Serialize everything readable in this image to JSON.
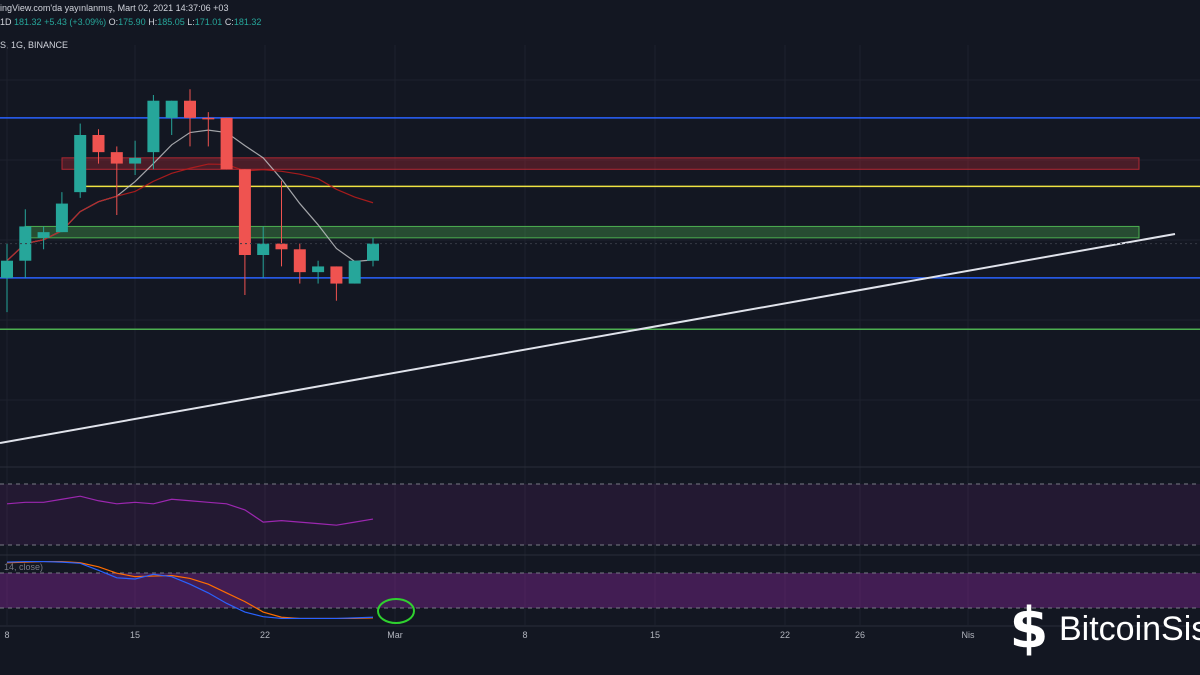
{
  "header": {
    "published": "ingView.com'da yayınlanmış, Mart 02, 2021 14:37:06 +03",
    "timeframe": "1D",
    "last_price": "181.32",
    "change": "+5.43 (+3.09%)",
    "o_label": "O:",
    "o_value": "175.90",
    "h_label": "H:",
    "h_value": "185.05",
    "l_label": "L:",
    "l_value": "171.01",
    "c_label": "C:",
    "c_value": "181.32",
    "symbol_line": "S, 1G, BINANCE",
    "stoch_label": "14, close)"
  },
  "watermark": {
    "brand": "BitcoinSis",
    "icon": "bitcoin-s-logo-icon"
  },
  "colors": {
    "background": "#131722",
    "up": "#26a69a",
    "down": "#ef5350",
    "blue_line": "#2962ff",
    "yellow_line": "#f0e442",
    "green_zone": "#4caf50",
    "red_zone": "#b22833",
    "rsi": "#9c27b0",
    "stoch_k": "#2962ff",
    "stoch_d": "#ff6d00",
    "trendline": "#e0e3eb"
  },
  "chart_data": {
    "type": "candlestick",
    "price_pane": {
      "ylim": [
        150,
        220
      ],
      "candles": [
        {
          "o": 181,
          "h": 187,
          "l": 175,
          "c": 184,
          "dir": "up"
        },
        {
          "o": 184,
          "h": 193,
          "l": 181,
          "c": 190,
          "dir": "up"
        },
        {
          "o": 188,
          "h": 190,
          "l": 186,
          "c": 189,
          "dir": "up"
        },
        {
          "o": 189,
          "h": 196,
          "l": 189,
          "c": 194,
          "dir": "up"
        },
        {
          "o": 196,
          "h": 208,
          "l": 195,
          "c": 206,
          "dir": "up"
        },
        {
          "o": 206,
          "h": 207,
          "l": 201,
          "c": 203,
          "dir": "down"
        },
        {
          "o": 203,
          "h": 204,
          "l": 192,
          "c": 201,
          "dir": "down"
        },
        {
          "o": 201,
          "h": 205,
          "l": 199,
          "c": 202,
          "dir": "up"
        },
        {
          "o": 203,
          "h": 213,
          "l": 200,
          "c": 212,
          "dir": "up"
        },
        {
          "o": 209,
          "h": 212,
          "l": 206,
          "c": 212,
          "dir": "up"
        },
        {
          "o": 212,
          "h": 214,
          "l": 204,
          "c": 209,
          "dir": "down"
        },
        {
          "o": 209,
          "h": 210,
          "l": 204,
          "c": 209,
          "dir": "down"
        },
        {
          "o": 209,
          "h": 209,
          "l": 200,
          "c": 200,
          "dir": "down"
        },
        {
          "o": 200,
          "h": 200,
          "l": 178,
          "c": 185,
          "dir": "down"
        },
        {
          "o": 185,
          "h": 190,
          "l": 181,
          "c": 187,
          "dir": "up"
        },
        {
          "o": 187,
          "h": 198,
          "l": 183,
          "c": 186,
          "dir": "down"
        },
        {
          "o": 186,
          "h": 187,
          "l": 180,
          "c": 182,
          "dir": "down"
        },
        {
          "o": 182,
          "h": 184,
          "l": 180,
          "c": 183,
          "dir": "up"
        },
        {
          "o": 183,
          "h": 183,
          "l": 177,
          "c": 180,
          "dir": "down"
        },
        {
          "o": 180,
          "h": 184,
          "l": 180,
          "c": 184,
          "dir": "up"
        },
        {
          "o": 184,
          "h": 188,
          "l": 183,
          "c": 187,
          "dir": "up"
        }
      ],
      "horizontal_levels": [
        {
          "name": "blue-resistance",
          "value": 209
        },
        {
          "name": "yellow-level",
          "value": 197
        },
        {
          "name": "blue-support",
          "value": 181
        },
        {
          "name": "green-support",
          "value": 172
        }
      ],
      "zones": [
        {
          "name": "red-zone",
          "from": 200,
          "to": 202
        },
        {
          "name": "green-zone",
          "from": 188,
          "to": 190
        }
      ]
    },
    "rsi_pane": {
      "values": [
        57,
        58,
        58,
        60,
        62,
        59,
        57,
        58,
        57,
        60,
        59,
        58,
        57,
        53,
        45,
        46,
        45,
        44,
        43,
        45,
        47
      ]
    },
    "stoch_pane": {
      "k": [
        98,
        99,
        99,
        98,
        96,
        84,
        71,
        69,
        77,
        73,
        60,
        45,
        27,
        12,
        4,
        1,
        1,
        1,
        1,
        2,
        3
      ],
      "d": [
        97,
        98,
        99,
        99,
        97,
        90,
        79,
        73,
        74,
        75,
        70,
        60,
        45,
        30,
        12,
        3,
        1,
        1,
        1,
        1,
        2
      ]
    },
    "x_tick_labels": [
      "8",
      "15",
      "22",
      "Mar",
      "8",
      "15",
      "22",
      "26",
      "Nis"
    ]
  }
}
